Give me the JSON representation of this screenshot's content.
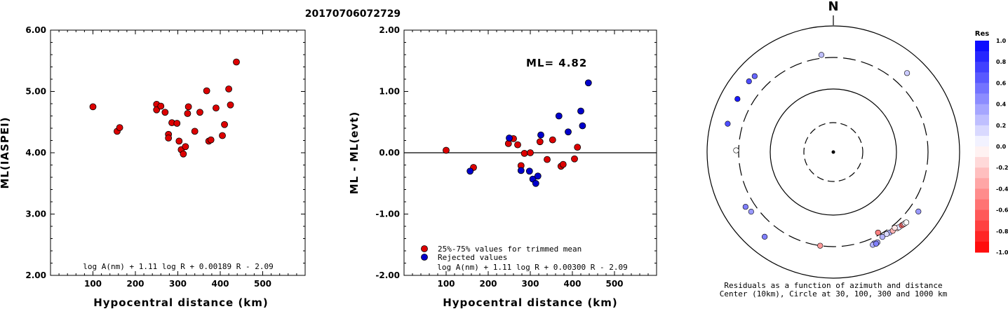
{
  "event_id": "20170706072729",
  "left_plot": {
    "ylabel": "ML(IASPEI)",
    "xlabel": "Hypocentral distance (km)",
    "formula": "log A(nm) + 1.11 log R + 0.00189 R - 2.09"
  },
  "middle_plot": {
    "ylabel": "ML - ML(evt)",
    "xlabel": "Hypocentral distance (km)",
    "ml_label": "ML= 4.82",
    "legend_trimmed": "25%-75% values for trimmed mean",
    "legend_rejected": "Rejected values",
    "formula": "log A(nm) + 1.11 log R + 0.00300 R - 2.09"
  },
  "polar_plot": {
    "north_label": "N",
    "caption_line1": "Residuals as a function of azimuth and distance",
    "caption_line2": "Center (10km), Circle at 30, 100, 300 and 1000 km"
  },
  "colorbar": {
    "title": "Res",
    "labels": [
      "1.0",
      "0.8",
      "0.6",
      "0.4",
      "0.2",
      "0.0",
      "-0.2",
      "-0.4",
      "-0.6",
      "-0.8",
      "-1.0"
    ]
  },
  "colors": {
    "accepted": "#dd0000",
    "rejected": "#0000cc",
    "positive_end": "#0000ff",
    "negative_end": "#ff0000"
  },
  "chart_data": [
    {
      "type": "scatter",
      "xlabel": "Hypocentral distance (km)",
      "ylabel": "ML(IASPEI)",
      "xlim": [
        0,
        600
      ],
      "ylim": [
        2.0,
        6.0
      ],
      "xticks": [
        "100",
        "200",
        "300",
        "400",
        "500"
      ],
      "yticks": [
        "2.00",
        "3.00",
        "4.00",
        "5.00",
        "6.00"
      ],
      "points": [
        [
          100,
          4.75
        ],
        [
          157,
          4.35
        ],
        [
          163,
          4.41
        ],
        [
          250,
          4.79
        ],
        [
          250,
          4.7
        ],
        [
          260,
          4.76
        ],
        [
          270,
          4.66
        ],
        [
          278,
          4.3
        ],
        [
          278,
          4.24
        ],
        [
          286,
          4.49
        ],
        [
          298,
          4.48
        ],
        [
          303,
          4.19
        ],
        [
          308,
          4.05
        ],
        [
          313,
          3.98
        ],
        [
          318,
          4.1
        ],
        [
          323,
          4.64
        ],
        [
          325,
          4.75
        ],
        [
          340,
          4.35
        ],
        [
          352,
          4.66
        ],
        [
          368,
          5.01
        ],
        [
          373,
          4.19
        ],
        [
          378,
          4.21
        ],
        [
          390,
          4.73
        ],
        [
          405,
          4.28
        ],
        [
          410,
          4.46
        ],
        [
          420,
          5.04
        ],
        [
          424,
          4.78
        ],
        [
          438,
          5.48
        ]
      ]
    },
    {
      "type": "scatter",
      "xlabel": "Hypocentral distance (km)",
      "ylabel": "ML - ML(evt)",
      "xlim": [
        0,
        600
      ],
      "ylim": [
        -2.0,
        2.0
      ],
      "xticks": [
        "100",
        "200",
        "300",
        "400",
        "500"
      ],
      "yticks": [
        "-2.00",
        "-1.00",
        "0.00",
        "1.00",
        "2.00"
      ],
      "reference_line": 0.0,
      "series": [
        {
          "name": "25%-75% values for trimmed mean",
          "points": [
            [
              100,
              0.04
            ],
            [
              165,
              -0.24
            ],
            [
              248,
              0.15
            ],
            [
              260,
              0.23
            ],
            [
              270,
              0.13
            ],
            [
              278,
              -0.21
            ],
            [
              286,
              -0.01
            ],
            [
              300,
              0.0
            ],
            [
              323,
              0.18
            ],
            [
              340,
              -0.11
            ],
            [
              353,
              0.21
            ],
            [
              373,
              -0.22
            ],
            [
              378,
              -0.19
            ],
            [
              405,
              -0.1
            ],
            [
              412,
              0.09
            ]
          ]
        },
        {
          "name": "Rejected values",
          "points": [
            [
              157,
              -0.3
            ],
            [
              250,
              0.24
            ],
            [
              278,
              -0.29
            ],
            [
              298,
              -0.3
            ],
            [
              306,
              -0.43
            ],
            [
              313,
              -0.5
            ],
            [
              318,
              -0.38
            ],
            [
              325,
              0.29
            ],
            [
              368,
              0.6
            ],
            [
              390,
              0.34
            ],
            [
              420,
              0.68
            ],
            [
              424,
              0.44
            ],
            [
              438,
              1.14
            ]
          ]
        }
      ]
    },
    {
      "type": "scatter",
      "title": "Residuals as a function of azimuth and distance",
      "rings_km": [
        30,
        100,
        300,
        1000
      ],
      "points": [
        {
          "az": 353,
          "dist": 340,
          "res": 0.25
        },
        {
          "az": 314,
          "dist": 525,
          "res": 0.6
        },
        {
          "az": 310,
          "dist": 540,
          "res": 0.7
        },
        {
          "az": 299,
          "dist": 530,
          "res": 0.9
        },
        {
          "az": 285,
          "dist": 525,
          "res": 0.7
        },
        {
          "az": 271,
          "dist": 330,
          "res": 0.0
        },
        {
          "az": 238,
          "dist": 420,
          "res": 0.5
        },
        {
          "az": 234,
          "dist": 390,
          "res": 0.4
        },
        {
          "az": 219,
          "dist": 520,
          "res": 0.5
        },
        {
          "az": 43,
          "dist": 500,
          "res": 0.2
        },
        {
          "az": 125,
          "dist": 425,
          "res": 0.4
        },
        {
          "az": 188,
          "dist": 300,
          "res": -0.4
        },
        {
          "az": 151,
          "dist": 275,
          "res": -0.5
        },
        {
          "az": 150,
          "dist": 342,
          "res": 0.3
        },
        {
          "az": 145,
          "dist": 345,
          "res": 0.3
        },
        {
          "az": 143,
          "dist": 350,
          "res": -0.3
        },
        {
          "az": 140,
          "dist": 360,
          "res": -0.2
        },
        {
          "az": 139,
          "dist": 365,
          "res": 0.1
        },
        {
          "az": 137,
          "dist": 372,
          "res": -0.6
        },
        {
          "az": 136,
          "dist": 378,
          "res": -0.5
        },
        {
          "az": 135,
          "dist": 382,
          "res": 0.05
        },
        {
          "az": 134,
          "dist": 388,
          "res": 0.0
        },
        {
          "az": 147,
          "dist": 338,
          "res": 0.15
        },
        {
          "az": 141,
          "dist": 335,
          "res": -0.1
        },
        {
          "az": 156,
          "dist": 370,
          "res": 0.4
        },
        {
          "az": 154,
          "dist": 375,
          "res": 0.35
        },
        {
          "az": 157,
          "dist": 380,
          "res": 0.3
        },
        {
          "az": 155,
          "dist": 385,
          "res": 0.5
        }
      ]
    }
  ]
}
